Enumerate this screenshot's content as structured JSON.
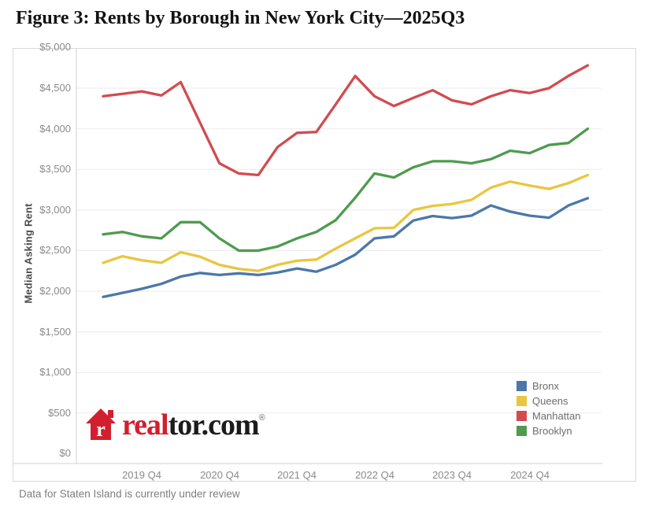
{
  "page": {
    "title": "Figure 3: Rents by Borough in New York City—2025Q3",
    "footnote": "Data for Staten Island is currently under review"
  },
  "logo": {
    "brand_prefix": "real",
    "brand_suffix": "tor.com",
    "registered_mark": "®",
    "house_letter": "r",
    "brand_red": "#d21f2f"
  },
  "chart_data": {
    "type": "line",
    "title": "Figure 3: Rents by Borough in New York City—2025Q3",
    "ylabel": "Median Asking Rent",
    "xlabel": "",
    "ylim": [
      0,
      5000
    ],
    "y_tick_step": 500,
    "grid": true,
    "legend_position": "bottom-right",
    "x": [
      "2019 Q2",
      "2019 Q3",
      "2019 Q4",
      "2020 Q1",
      "2020 Q2",
      "2020 Q3",
      "2020 Q4",
      "2021 Q1",
      "2021 Q2",
      "2021 Q3",
      "2021 Q4",
      "2022 Q1",
      "2022 Q2",
      "2022 Q3",
      "2022 Q4",
      "2023 Q1",
      "2023 Q2",
      "2023 Q3",
      "2023 Q4",
      "2024 Q1",
      "2024 Q2",
      "2024 Q3",
      "2024 Q4",
      "2025 Q1",
      "2025 Q2",
      "2025 Q3"
    ],
    "x_ticks": [
      {
        "label": "2019 Q4",
        "index": 2
      },
      {
        "label": "2020 Q4",
        "index": 6
      },
      {
        "label": "2021 Q4",
        "index": 10
      },
      {
        "label": "2022 Q4",
        "index": 14
      },
      {
        "label": "2023 Q4",
        "index": 18
      },
      {
        "label": "2024 Q4",
        "index": 22
      }
    ],
    "y_ticks": [
      {
        "label": "$0",
        "value": 0
      },
      {
        "label": "$500",
        "value": 500
      },
      {
        "label": "$1,000",
        "value": 1000
      },
      {
        "label": "$1,500",
        "value": 1500
      },
      {
        "label": "$2,000",
        "value": 2000
      },
      {
        "label": "$2,500",
        "value": 2500
      },
      {
        "label": "$3,000",
        "value": 3000
      },
      {
        "label": "$3,500",
        "value": 3500
      },
      {
        "label": "$4,000",
        "value": 4000
      },
      {
        "label": "$4,500",
        "value": 4500
      },
      {
        "label": "$5,000",
        "value": 5000
      }
    ],
    "series": [
      {
        "name": "Bronx",
        "color": "#4b77ab",
        "values": [
          1930,
          1980,
          2030,
          2090,
          2180,
          2225,
          2200,
          2220,
          2200,
          2230,
          2280,
          2240,
          2325,
          2450,
          2650,
          2675,
          2870,
          2925,
          2900,
          2930,
          3055,
          2980,
          2930,
          2905,
          3055,
          3145
        ]
      },
      {
        "name": "Queens",
        "color": "#e9c63e",
        "values": [
          2350,
          2430,
          2380,
          2350,
          2480,
          2425,
          2325,
          2275,
          2250,
          2325,
          2375,
          2390,
          2525,
          2650,
          2775,
          2780,
          3000,
          3050,
          3075,
          3125,
          3275,
          3350,
          3300,
          3260,
          3330,
          3430
        ]
      },
      {
        "name": "Manhattan",
        "color": "#d24b50",
        "values": [
          4400,
          4430,
          4460,
          4410,
          4575,
          4075,
          3575,
          3450,
          3430,
          3775,
          3950,
          3960,
          4300,
          4650,
          4400,
          4280,
          4380,
          4475,
          4350,
          4300,
          4400,
          4475,
          4440,
          4500,
          4650,
          4780
        ]
      },
      {
        "name": "Brooklyn",
        "color": "#4e9b4e",
        "values": [
          2700,
          2730,
          2675,
          2650,
          2850,
          2850,
          2650,
          2500,
          2500,
          2550,
          2650,
          2730,
          2875,
          3150,
          3450,
          3400,
          3525,
          3600,
          3600,
          3575,
          3625,
          3730,
          3700,
          3800,
          3825,
          4000
        ]
      }
    ],
    "legend_order": [
      "Bronx",
      "Queens",
      "Manhattan",
      "Brooklyn"
    ]
  }
}
